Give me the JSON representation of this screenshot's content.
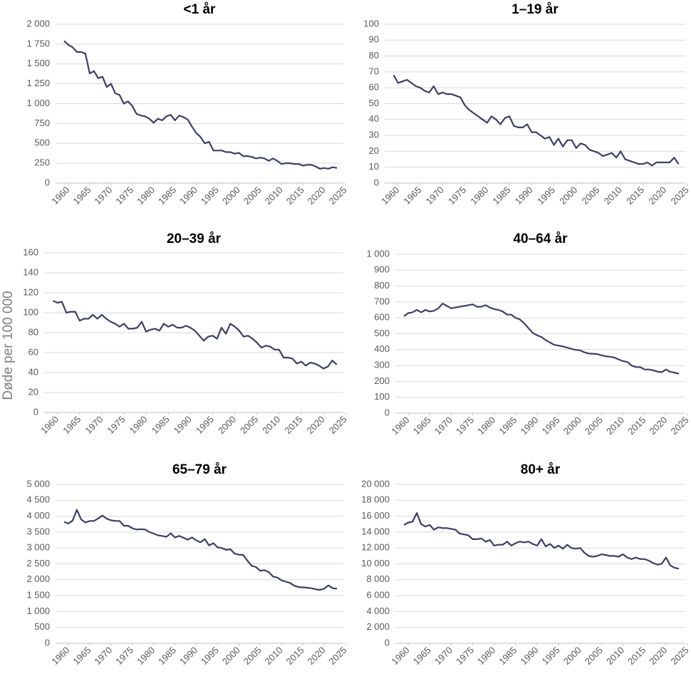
{
  "chart_data": [
    {
      "type": "line",
      "title": "<1 år",
      "color": "#3b3f63",
      "grid": true,
      "x": [
        1959,
        1960,
        1961,
        1962,
        1963,
        1964,
        1965,
        1966,
        1967,
        1968,
        1969,
        1970,
        1971,
        1972,
        1973,
        1974,
        1975,
        1976,
        1977,
        1978,
        1979,
        1980,
        1981,
        1982,
        1983,
        1984,
        1985,
        1986,
        1987,
        1988,
        1989,
        1990,
        1991,
        1992,
        1993,
        1994,
        1995,
        1996,
        1997,
        1998,
        1999,
        2000,
        2001,
        2002,
        2003,
        2004,
        2005,
        2006,
        2007,
        2008,
        2009,
        2010,
        2011,
        2012,
        2013,
        2014,
        2015,
        2016,
        2017,
        2018,
        2019,
        2020,
        2021,
        2022,
        2023
      ],
      "values": [
        1790,
        1740,
        1710,
        1650,
        1650,
        1630,
        1380,
        1410,
        1320,
        1340,
        1210,
        1250,
        1130,
        1110,
        1000,
        1030,
        970,
        870,
        850,
        840,
        810,
        760,
        810,
        790,
        840,
        860,
        790,
        850,
        830,
        800,
        710,
        630,
        580,
        500,
        520,
        410,
        410,
        410,
        390,
        390,
        370,
        380,
        340,
        340,
        330,
        310,
        320,
        310,
        280,
        310,
        280,
        240,
        250,
        250,
        240,
        240,
        220,
        230,
        230,
        210,
        180,
        190,
        180,
        200,
        190
      ],
      "xlim": [
        1957,
        2024.5
      ],
      "xticks": [
        1960,
        1965,
        1970,
        1975,
        1980,
        1985,
        1990,
        1995,
        2000,
        2005,
        2010,
        2015,
        2020,
        2025
      ],
      "ylim": [
        0,
        2000
      ],
      "yticks": [
        0,
        250,
        500,
        750,
        {
          "value": 1000,
          "label": "1 000"
        },
        {
          "value": 1250,
          "label": "1 250"
        },
        {
          "value": 1500,
          "label": "1 500"
        },
        {
          "value": 1750,
          "label": "1 750"
        },
        {
          "value": 2000,
          "label": "2 000"
        }
      ]
    },
    {
      "type": "line",
      "title": "1–19 år",
      "color": "#3b3f63",
      "grid": true,
      "x": [
        1959,
        1960,
        1961,
        1962,
        1963,
        1964,
        1965,
        1966,
        1967,
        1968,
        1969,
        1970,
        1971,
        1972,
        1973,
        1974,
        1975,
        1976,
        1977,
        1978,
        1979,
        1980,
        1981,
        1982,
        1983,
        1984,
        1985,
        1986,
        1987,
        1988,
        1989,
        1990,
        1991,
        1992,
        1993,
        1994,
        1995,
        1996,
        1997,
        1998,
        1999,
        2000,
        2001,
        2002,
        2003,
        2004,
        2005,
        2006,
        2007,
        2008,
        2009,
        2010,
        2011,
        2012,
        2013,
        2014,
        2015,
        2016,
        2017,
        2018,
        2019,
        2020,
        2021,
        2022,
        2023
      ],
      "values": [
        68,
        63,
        64,
        65,
        63,
        61,
        60,
        58,
        57,
        61,
        56,
        57,
        56,
        56,
        55,
        54,
        49,
        46,
        44,
        42,
        40,
        38,
        42,
        40,
        37,
        41,
        42,
        36,
        35,
        35,
        37,
        32,
        32,
        30,
        28,
        29,
        24,
        28,
        23,
        27,
        27,
        22,
        25,
        24,
        21,
        20,
        19,
        17,
        18,
        19,
        16,
        20,
        15,
        14,
        13,
        12,
        12,
        13,
        11,
        13,
        13,
        13,
        13,
        16,
        12
      ],
      "xlim": [
        1957,
        2024.5
      ],
      "xticks": [
        1960,
        1965,
        1970,
        1975,
        1980,
        1985,
        1990,
        1995,
        2000,
        2005,
        2010,
        2015,
        2020,
        2025
      ],
      "ylim": [
        0,
        100
      ],
      "yticks": [
        0,
        10,
        20,
        30,
        40,
        50,
        60,
        70,
        80,
        90,
        100
      ]
    },
    {
      "type": "line",
      "title": "20–39 år",
      "ylabel": "Døde per 100 000",
      "color": "#3b3f63",
      "grid": true,
      "x": [
        1959,
        1960,
        1961,
        1962,
        1963,
        1964,
        1965,
        1966,
        1967,
        1968,
        1969,
        1970,
        1971,
        1972,
        1973,
        1974,
        1975,
        1976,
        1977,
        1978,
        1979,
        1980,
        1981,
        1982,
        1983,
        1984,
        1985,
        1986,
        1987,
        1988,
        1989,
        1990,
        1991,
        1992,
        1993,
        1994,
        1995,
        1996,
        1997,
        1998,
        1999,
        2000,
        2001,
        2002,
        2003,
        2004,
        2005,
        2006,
        2007,
        2008,
        2009,
        2010,
        2011,
        2012,
        2013,
        2014,
        2015,
        2016,
        2017,
        2018,
        2019,
        2020,
        2021,
        2022,
        2023
      ],
      "values": [
        112,
        110,
        111,
        100,
        101,
        101,
        92,
        94,
        94,
        98,
        94,
        98,
        94,
        91,
        89,
        86,
        89,
        84,
        84,
        85,
        91,
        81,
        83,
        84,
        82,
        89,
        86,
        88,
        85,
        85,
        87,
        85,
        82,
        77,
        72,
        76,
        77,
        74,
        85,
        79,
        89,
        86,
        82,
        76,
        77,
        74,
        70,
        65,
        67,
        66,
        63,
        63,
        55,
        55,
        54,
        49,
        51,
        47,
        50,
        49,
        47,
        44,
        46,
        52,
        48
      ],
      "xlim": [
        1957,
        2024.5
      ],
      "xticks": [
        1960,
        1965,
        1970,
        1975,
        1980,
        1985,
        1990,
        1995,
        2000,
        2005,
        2010,
        2015,
        2020,
        2025
      ],
      "ylim": [
        0,
        160
      ],
      "yticks": [
        0,
        20,
        40,
        60,
        80,
        100,
        120,
        140,
        160
      ]
    },
    {
      "type": "line",
      "title": "40–64 år",
      "color": "#3b3f63",
      "grid": true,
      "x": [
        1959,
        1960,
        1961,
        1962,
        1963,
        1964,
        1965,
        1966,
        1967,
        1968,
        1969,
        1970,
        1971,
        1972,
        1973,
        1974,
        1975,
        1976,
        1977,
        1978,
        1979,
        1980,
        1981,
        1982,
        1983,
        1984,
        1985,
        1986,
        1987,
        1988,
        1989,
        1990,
        1991,
        1992,
        1993,
        1994,
        1995,
        1996,
        1997,
        1998,
        1999,
        2000,
        2001,
        2002,
        2003,
        2004,
        2005,
        2006,
        2007,
        2008,
        2009,
        2010,
        2011,
        2012,
        2013,
        2014,
        2015,
        2016,
        2017,
        2018,
        2019,
        2020,
        2021,
        2022,
        2023
      ],
      "values": [
        610,
        630,
        635,
        650,
        635,
        650,
        640,
        645,
        660,
        690,
        675,
        660,
        665,
        670,
        675,
        680,
        685,
        670,
        670,
        680,
        665,
        655,
        650,
        640,
        620,
        620,
        600,
        590,
        565,
        535,
        505,
        490,
        480,
        460,
        445,
        430,
        425,
        420,
        412,
        405,
        398,
        396,
        383,
        376,
        374,
        372,
        364,
        358,
        355,
        350,
        338,
        328,
        322,
        300,
        290,
        290,
        275,
        275,
        270,
        262,
        258,
        275,
        260,
        255,
        248
      ],
      "xlim": [
        1957,
        2024.5
      ],
      "xticks": [
        1960,
        1965,
        1970,
        1975,
        1980,
        1985,
        1990,
        1995,
        2000,
        2005,
        2010,
        2015,
        2020,
        2025
      ],
      "ylim": [
        0,
        1000
      ],
      "yticks": [
        0,
        100,
        200,
        300,
        400,
        500,
        600,
        700,
        800,
        900,
        {
          "value": 1000,
          "label": "1 000"
        }
      ]
    },
    {
      "type": "line",
      "title": "65–79 år",
      "color": "#3b3f63",
      "grid": true,
      "x": [
        1959,
        1960,
        1961,
        1962,
        1963,
        1964,
        1965,
        1966,
        1967,
        1968,
        1969,
        1970,
        1971,
        1972,
        1973,
        1974,
        1975,
        1976,
        1977,
        1978,
        1979,
        1980,
        1981,
        1982,
        1983,
        1984,
        1985,
        1986,
        1987,
        1988,
        1989,
        1990,
        1991,
        1992,
        1993,
        1994,
        1995,
        1996,
        1997,
        1998,
        1999,
        2000,
        2001,
        2002,
        2003,
        2004,
        2005,
        2006,
        2007,
        2008,
        2009,
        2010,
        2011,
        2012,
        2013,
        2014,
        2015,
        2016,
        2017,
        2018,
        2019,
        2020,
        2021,
        2022,
        2023
      ],
      "values": [
        3820,
        3770,
        3860,
        4200,
        3900,
        3800,
        3850,
        3850,
        3930,
        4020,
        3920,
        3870,
        3850,
        3850,
        3700,
        3700,
        3620,
        3580,
        3590,
        3580,
        3500,
        3450,
        3400,
        3380,
        3350,
        3460,
        3330,
        3380,
        3320,
        3260,
        3330,
        3240,
        3180,
        3280,
        3080,
        3150,
        3020,
        3000,
        2940,
        2960,
        2820,
        2790,
        2780,
        2600,
        2440,
        2400,
        2280,
        2300,
        2240,
        2100,
        2070,
        1980,
        1940,
        1900,
        1810,
        1770,
        1760,
        1750,
        1730,
        1700,
        1680,
        1720,
        1820,
        1730,
        1720
      ],
      "xlim": [
        1957,
        2024.5
      ],
      "xticks": [
        1960,
        1965,
        1970,
        1975,
        1980,
        1985,
        1990,
        1995,
        2000,
        2005,
        2010,
        2015,
        2020,
        2025
      ],
      "ylim": [
        0,
        5000
      ],
      "yticks": [
        0,
        500,
        {
          "value": 1000,
          "label": "1 000"
        },
        {
          "value": 1500,
          "label": "1 500"
        },
        {
          "value": 2000,
          "label": "2 000"
        },
        {
          "value": 2500,
          "label": "2 500"
        },
        {
          "value": 3000,
          "label": "3 000"
        },
        {
          "value": 3500,
          "label": "3 500"
        },
        {
          "value": 4000,
          "label": "4 000"
        },
        {
          "value": 4500,
          "label": "4 500"
        },
        {
          "value": 5000,
          "label": "5 000"
        }
      ]
    },
    {
      "type": "line",
      "title": "80+ år",
      "color": "#3b3f63",
      "grid": true,
      "x": [
        1959,
        1960,
        1961,
        1962,
        1963,
        1964,
        1965,
        1966,
        1967,
        1968,
        1969,
        1970,
        1971,
        1972,
        1973,
        1974,
        1975,
        1976,
        1977,
        1978,
        1979,
        1980,
        1981,
        1982,
        1983,
        1984,
        1985,
        1986,
        1987,
        1988,
        1989,
        1990,
        1991,
        1992,
        1993,
        1994,
        1995,
        1996,
        1997,
        1998,
        1999,
        2000,
        2001,
        2002,
        2003,
        2004,
        2005,
        2006,
        2007,
        2008,
        2009,
        2010,
        2011,
        2012,
        2013,
        2014,
        2015,
        2016,
        2017,
        2018,
        2019,
        2020,
        2021,
        2022,
        2023
      ],
      "values": [
        14900,
        15200,
        15300,
        16400,
        15000,
        14700,
        14900,
        14300,
        14600,
        14500,
        14500,
        14400,
        14300,
        13800,
        13700,
        13600,
        13100,
        13100,
        13200,
        12800,
        13000,
        12300,
        12400,
        12400,
        12800,
        12300,
        12600,
        12800,
        12700,
        12800,
        12500,
        12300,
        13100,
        12200,
        12500,
        12000,
        12300,
        11900,
        12400,
        12000,
        11900,
        12000,
        11400,
        11000,
        10900,
        11000,
        11200,
        11100,
        11000,
        11000,
        10900,
        11200,
        10800,
        10600,
        10800,
        10600,
        10600,
        10400,
        10100,
        9900,
        10000,
        10800,
        9800,
        9500,
        9400
      ],
      "xlim": [
        1957,
        2024.5
      ],
      "xticks": [
        1960,
        1965,
        1970,
        1975,
        1980,
        1985,
        1990,
        1995,
        2000,
        2005,
        2010,
        2015,
        2020,
        2025
      ],
      "ylim": [
        0,
        20000
      ],
      "yticks": [
        0,
        {
          "value": 2000,
          "label": "2 000"
        },
        {
          "value": 4000,
          "label": "4 000"
        },
        {
          "value": 6000,
          "label": "6 000"
        },
        {
          "value": 8000,
          "label": "8 000"
        },
        {
          "value": 10000,
          "label": "10 000"
        },
        {
          "value": 12000,
          "label": "12 000"
        },
        {
          "value": 14000,
          "label": "14 000"
        },
        {
          "value": 16000,
          "label": "16 000"
        },
        {
          "value": 18000,
          "label": "18 000"
        },
        {
          "value": 20000,
          "label": "20 000"
        }
      ]
    }
  ]
}
